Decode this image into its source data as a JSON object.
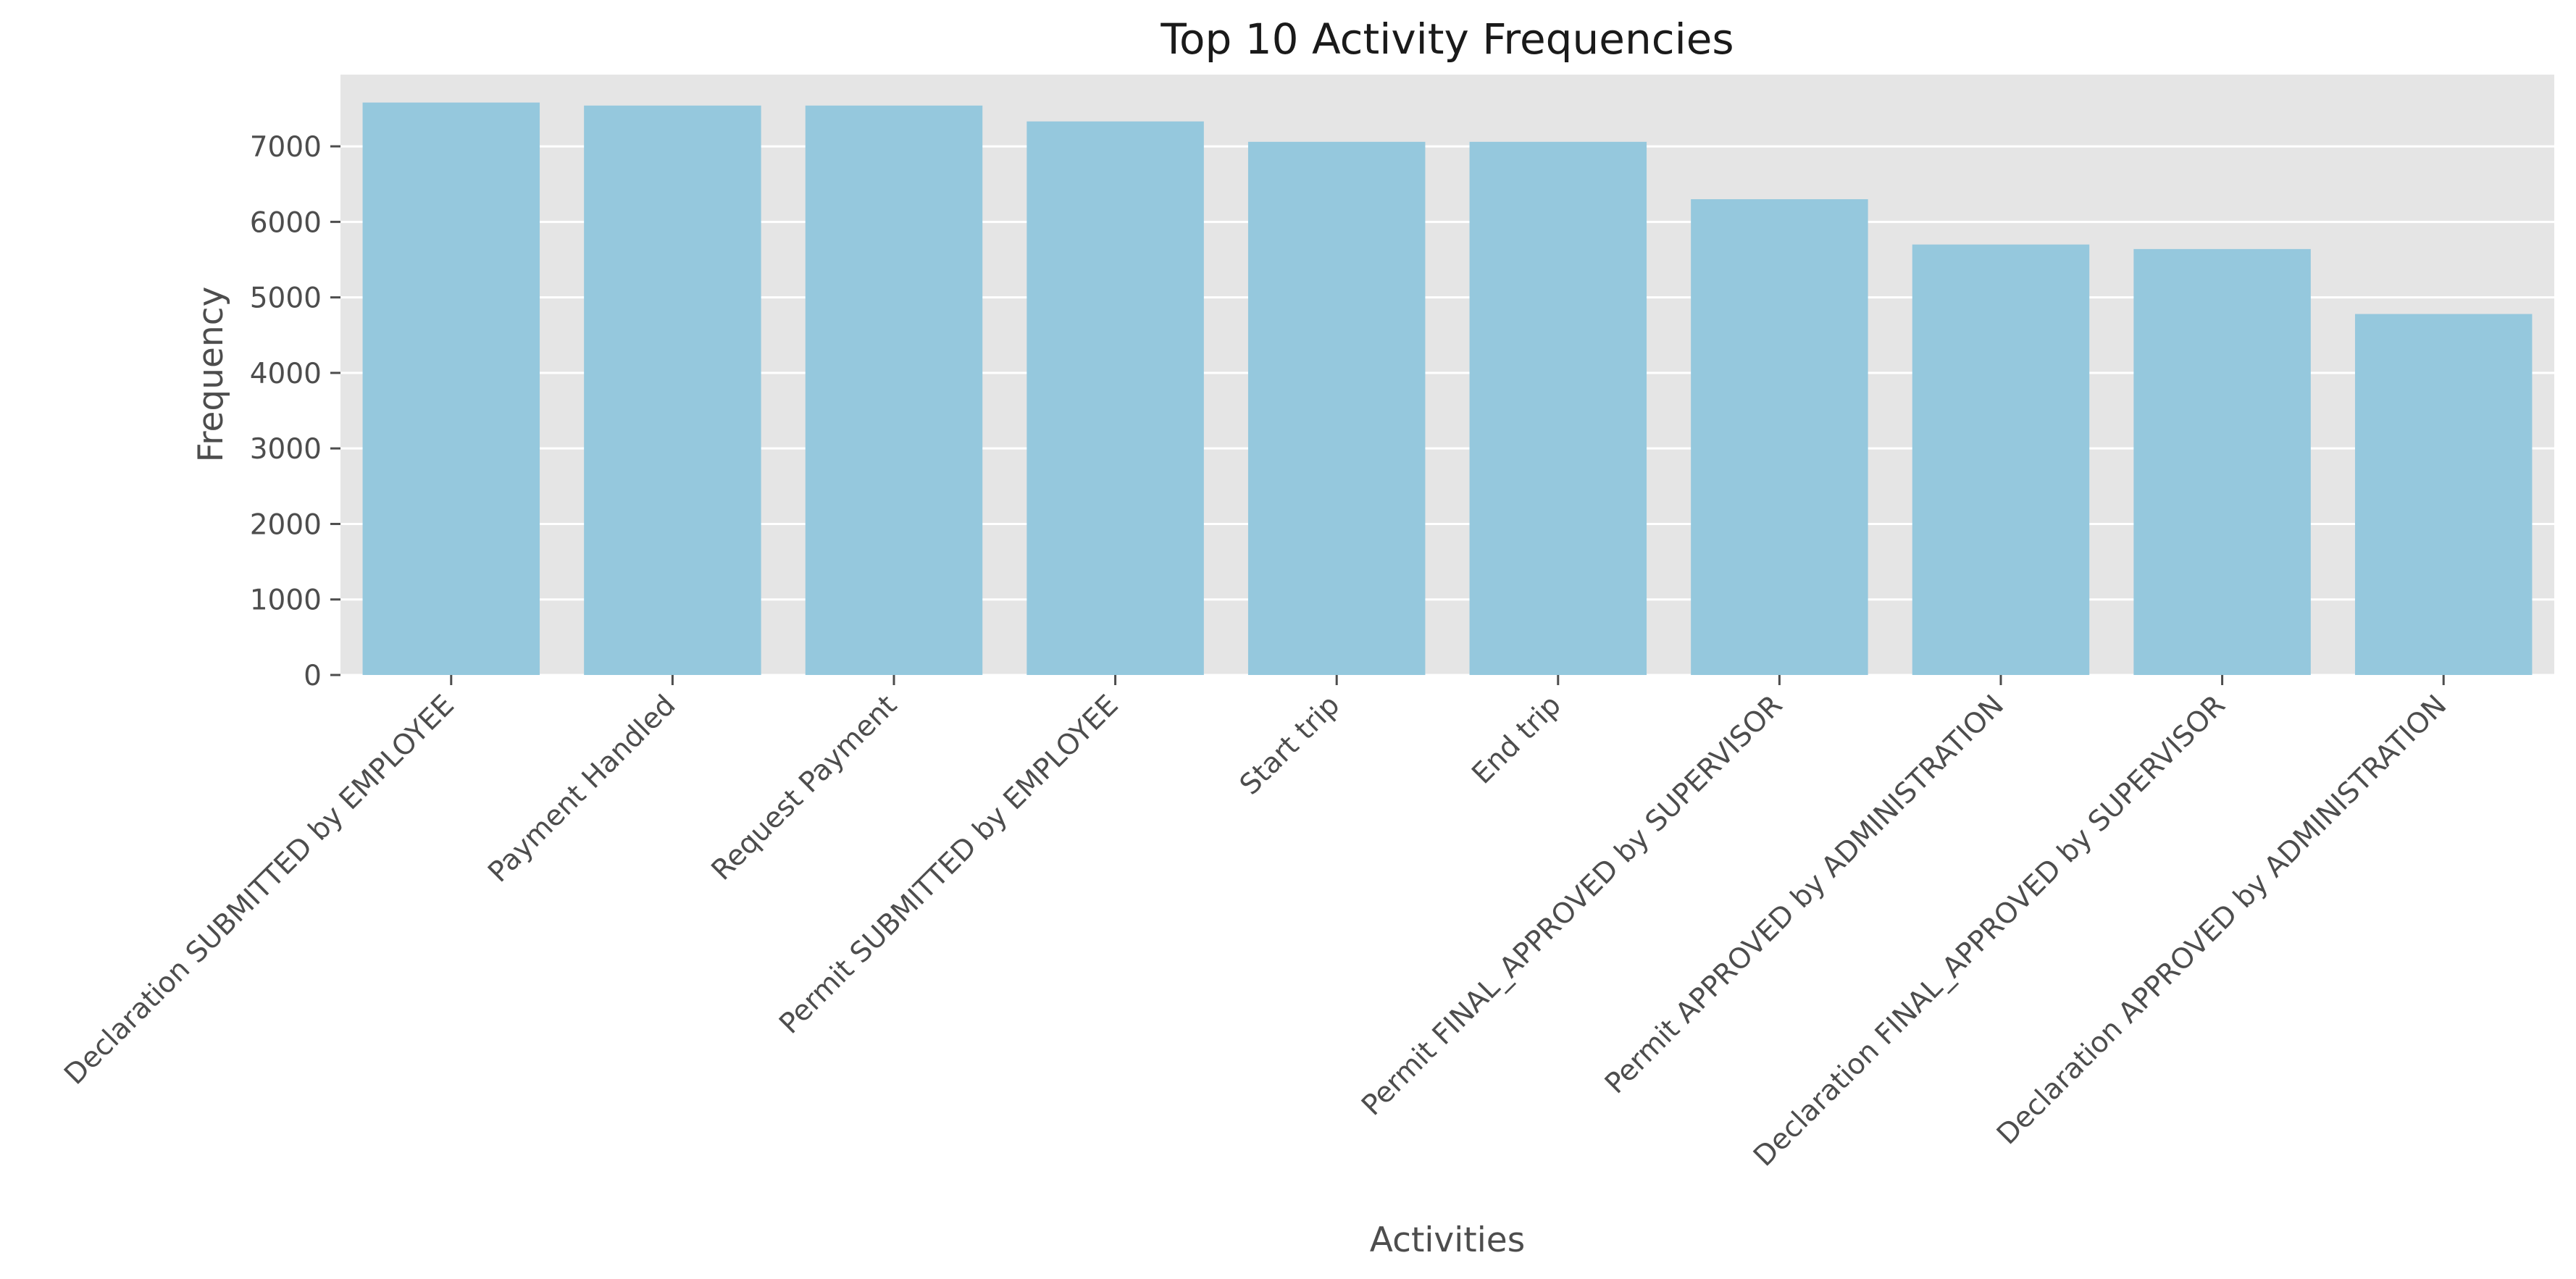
{
  "chart_data": {
    "type": "bar",
    "title": "Top 10 Activity Frequencies",
    "xlabel": "Activities",
    "ylabel": "Frequency",
    "categories": [
      "Declaration SUBMITTED by EMPLOYEE",
      "Payment Handled",
      "Request Payment",
      "Permit SUBMITTED by EMPLOYEE",
      "Start trip",
      "End trip",
      "Permit FINAL_APPROVED by SUPERVISOR",
      "Permit APPROVED by ADMINISTRATION",
      "Declaration FINAL_APPROVED by SUPERVISOR",
      "Declaration APPROVED by ADMINISTRATION"
    ],
    "values": [
      7580,
      7540,
      7540,
      7330,
      7060,
      7060,
      6300,
      5700,
      5640,
      4780
    ],
    "yticks": [
      0,
      1000,
      2000,
      3000,
      4000,
      5000,
      6000,
      7000
    ],
    "ylim": [
      0,
      7950
    ],
    "grid": true,
    "colors": {
      "bar": "#95c8dd",
      "plot_background": "#e5e5e5",
      "grid": "#ffffff",
      "text": "#4d4d4d"
    }
  }
}
